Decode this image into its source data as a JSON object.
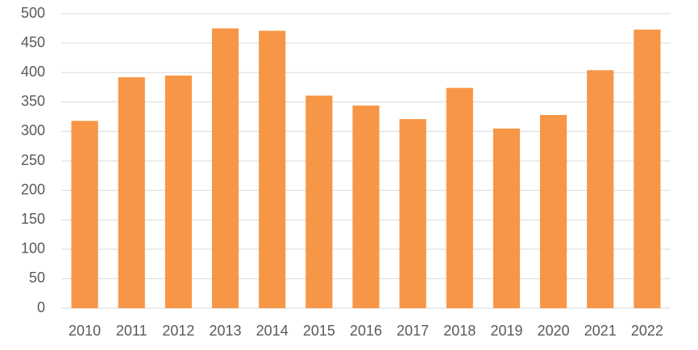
{
  "chart_data": {
    "type": "bar",
    "categories": [
      "2010",
      "2011",
      "2012",
      "2013",
      "2014",
      "2015",
      "2016",
      "2017",
      "2018",
      "2019",
      "2020",
      "2021",
      "2022"
    ],
    "values": [
      318,
      392,
      395,
      475,
      471,
      361,
      344,
      321,
      374,
      305,
      328,
      404,
      473
    ],
    "color": "#f79646",
    "ylim": [
      0,
      500
    ],
    "yticks": [
      0,
      50,
      100,
      150,
      200,
      250,
      300,
      350,
      400,
      450,
      500
    ],
    "grid": true
  }
}
